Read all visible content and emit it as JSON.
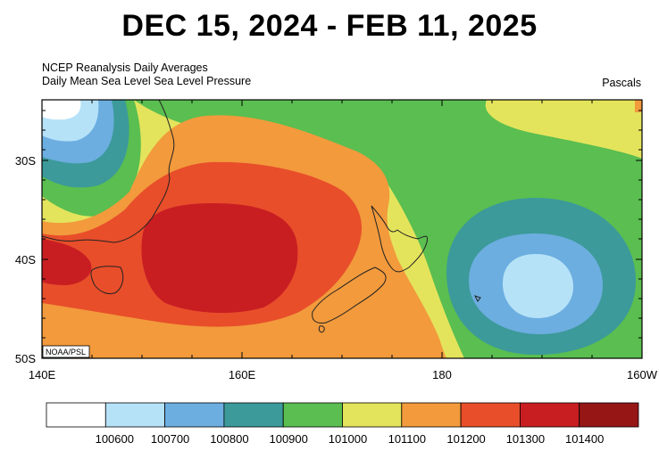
{
  "header": {
    "title": "DEC 15, 2024 - FEB 11, 2025",
    "subtitle_line1": "NCEP Reanalysis Daily Averages",
    "subtitle_line2": "Daily Mean  Sea Level Sea Level Pressure",
    "units": "Pascals"
  },
  "map": {
    "credit": "NOAA/PSL",
    "region": "New Zealand / Tasman Sea",
    "lon_ticks": [
      "140E",
      "160E",
      "180",
      "160W"
    ],
    "lat_ticks": [
      "30S",
      "40S",
      "50S"
    ]
  },
  "legend": {
    "colors": [
      "#ffffff",
      "#b6e2f8",
      "#6caee0",
      "#3c9a9a",
      "#5abe50",
      "#e4e45c",
      "#f29a3c",
      "#e84e2a",
      "#c81e22",
      "#961616"
    ],
    "labels": [
      "100600",
      "100700",
      "100800",
      "100900",
      "101000",
      "101100",
      "101200",
      "101300",
      "101400"
    ]
  }
}
